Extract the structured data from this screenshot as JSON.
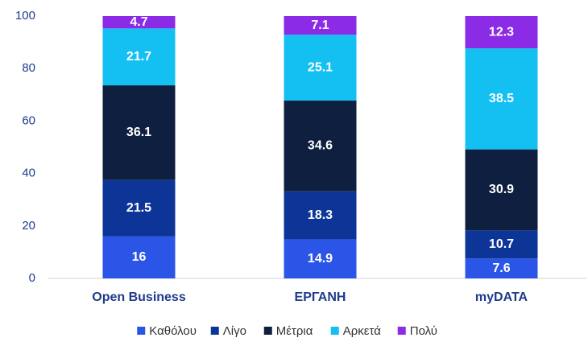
{
  "chart_data": {
    "type": "stacked_bar",
    "categories": [
      "Open Business",
      "ΕΡΓΑΝΗ",
      "myDATA"
    ],
    "series": [
      {
        "name": "Καθόλου",
        "color": "#2b55e6",
        "values": [
          16,
          14.9,
          7.6
        ]
      },
      {
        "name": "Λίγο",
        "color": "#0c3597",
        "values": [
          21.5,
          18.3,
          10.7
        ]
      },
      {
        "name": "Μέτρια",
        "color": "#0f1f3f",
        "values": [
          36.1,
          34.6,
          30.9
        ]
      },
      {
        "name": "Αρκετά",
        "color": "#14c0f2",
        "values": [
          21.7,
          25.1,
          38.5
        ]
      },
      {
        "name": "Πολύ",
        "color": "#8b2be6",
        "values": [
          4.7,
          7.1,
          12.3
        ]
      }
    ],
    "ylim": [
      0,
      100
    ],
    "yticks": [
      0,
      20,
      40,
      60,
      80,
      100
    ],
    "grid": false,
    "legend": "bottom"
  }
}
